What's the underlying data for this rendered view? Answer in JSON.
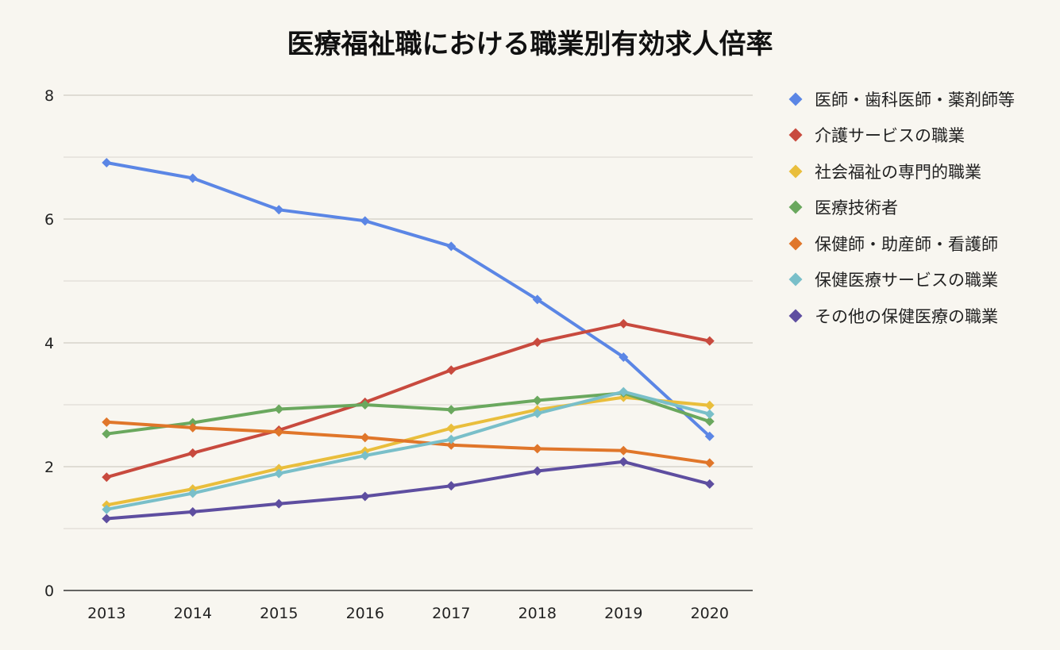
{
  "chart_data": {
    "type": "line",
    "title": "医療福祉職における職業別有効求人倍率",
    "xlabel": "",
    "ylabel": "",
    "categories": [
      "2013",
      "2014",
      "2015",
      "2016",
      "2017",
      "2018",
      "2019",
      "2020"
    ],
    "ylim": [
      0,
      8
    ],
    "yticks": [
      0,
      2,
      4,
      6,
      8
    ],
    "grid": true,
    "legend_position": "right",
    "series": [
      {
        "name": "医師・歯科医師・薬剤師等",
        "color": "#5b86e5",
        "values": [
          6.91,
          6.66,
          6.15,
          5.97,
          5.56,
          4.7,
          3.77,
          2.49
        ]
      },
      {
        "name": "介護サービスの職業",
        "color": "#c84a3e",
        "values": [
          1.83,
          2.22,
          2.59,
          3.04,
          3.56,
          4.01,
          4.31,
          4.03
        ]
      },
      {
        "name": "社会福祉の専門的職業",
        "color": "#e9be3c",
        "values": [
          1.38,
          1.64,
          1.97,
          2.25,
          2.62,
          2.92,
          3.12,
          2.99
        ]
      },
      {
        "name": "医療技術者",
        "color": "#6aa85e",
        "values": [
          2.53,
          2.71,
          2.93,
          3.0,
          2.92,
          3.07,
          3.19,
          2.73
        ]
      },
      {
        "name": "保健師・助産師・看護師",
        "color": "#e0762a",
        "values": [
          2.72,
          2.63,
          2.56,
          2.47,
          2.35,
          2.29,
          2.26,
          2.06
        ]
      },
      {
        "name": "保健医療サービスの職業",
        "color": "#79bfc9",
        "values": [
          1.31,
          1.57,
          1.89,
          2.18,
          2.44,
          2.86,
          3.21,
          2.85
        ]
      },
      {
        "name": "その他の保健医療の職業",
        "color": "#5e4ea0",
        "values": [
          1.16,
          1.27,
          1.4,
          1.52,
          1.69,
          1.93,
          2.08,
          1.72
        ]
      }
    ]
  }
}
